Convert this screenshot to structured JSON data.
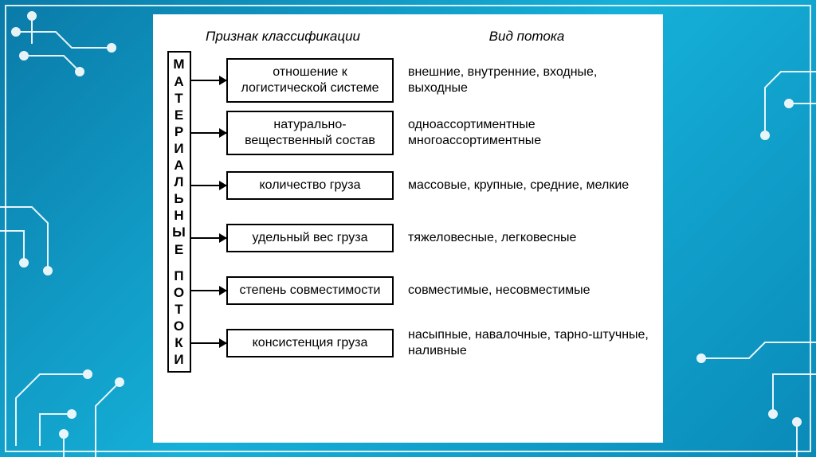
{
  "background": {
    "gradient_start": "#0a7aa8",
    "gradient_mid": "#15b0d8",
    "gradient_end": "#0a8ab8",
    "frame_color": "#ffffff",
    "circuit_color": "#ffffff"
  },
  "panel": {
    "background": "#ffffff",
    "text_color": "#000000",
    "border_color": "#000000",
    "font_family": "Arial",
    "title_fontsize": 17,
    "body_fontsize": 16
  },
  "headers": {
    "classification": "Признак классификации",
    "flow_type": "Вид потока"
  },
  "vertical_label": {
    "word1": "МАТЕРИАЛЬНЫЕ",
    "word2": "ПОТОКИ"
  },
  "rows": [
    {
      "label": "отношение к логистической системе",
      "desc": "внешние, внутренние, входные, выходные"
    },
    {
      "label": "натурально-вещественный состав",
      "desc": "одноассортиментные многоассортиментные"
    },
    {
      "label": "количество груза",
      "desc": "массовые, крупные, средние, мелкие"
    },
    {
      "label": "удельный вес груза",
      "desc": "тяжеловесные, легковесные"
    },
    {
      "label": "степень совместимости",
      "desc": "совместимые, несовместимые"
    },
    {
      "label": "консистенция груза",
      "desc": "насыпные, навалочные, тарно-штучные, наливные"
    }
  ]
}
